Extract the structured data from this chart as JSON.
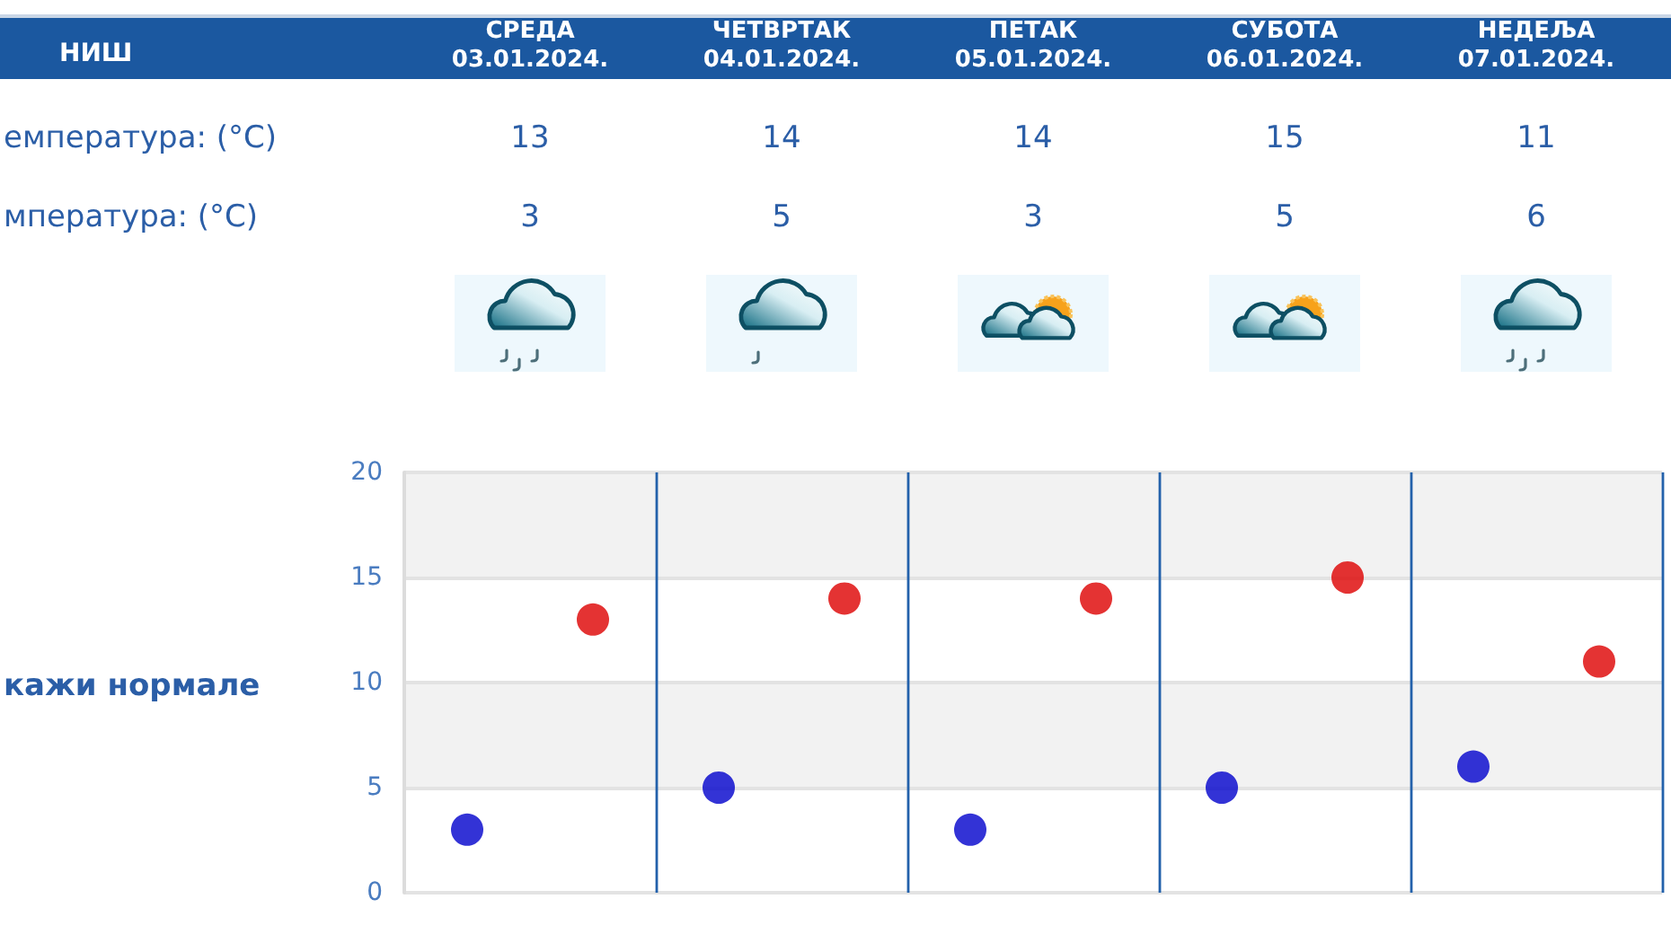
{
  "chart_data": {
    "type": "scatter",
    "title": "НИШ",
    "categories": [
      null,
      null,
      null,
      null,
      null
    ],
    "series": [
      {
        "color": "#dd0000",
        "values": [
          13,
          14,
          14,
          15,
          11
        ]
      },
      {
        "color": "#0000cc",
        "values": [
          3,
          5,
          3,
          5,
          6
        ]
      }
    ],
    "ylim": [
      0,
      20
    ],
    "yticks": [
      0,
      5,
      10,
      15,
      20
    ],
    "tick_labels": "y",
    "grid": true,
    "marker": "circle",
    "data_labels": true,
    "annotations": [
      "СРЕДА 03.01.2024.",
      "ЧЕТВРТАК 04.01.2024.",
      "ПЕТАК 05.01.2024.",
      "СУБОТА 06.01.2024.",
      "НЕДЕЉА 07.01.2024.",
      "емпература: (°C)",
      "мпература: (°C)",
      "кажи нормале"
    ]
  }
}
